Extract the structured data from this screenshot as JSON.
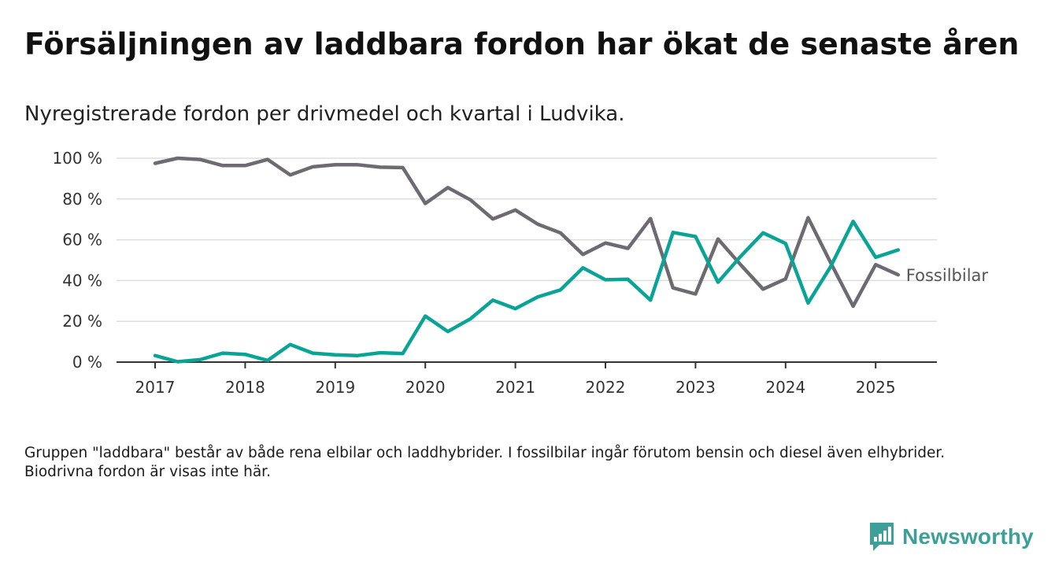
{
  "title": "Försäljningen av laddbara fordon har ökat de senaste åren",
  "subtitle": "Nyregistrerade fordon per drivmedel och kvartal i Ludvika.",
  "footnote": "Gruppen \"laddbara\" består av både rena elbilar och laddhybrider. I fossilbilar ingår förutom bensin och diesel även elhybrider. Biodrivna fordon är visas inte här.",
  "brand": "Newsworthy",
  "colors": {
    "fossil": "#6d6a72",
    "laddbara": "#0aa496",
    "grid": "#dddddd",
    "axis": "#333333",
    "brand": "#3c9f98"
  },
  "chart_data": {
    "type": "line",
    "x_start": "2017-01",
    "x_step": "quarter",
    "xticks": [
      "2017",
      "2018",
      "2019",
      "2020",
      "2021",
      "2022",
      "2023",
      "2024",
      "2025"
    ],
    "ylim": [
      0,
      100
    ],
    "yticks": [
      "0 %",
      "20 %",
      "40 %",
      "60 %",
      "80 %",
      "100 %"
    ],
    "grid": true,
    "series": [
      {
        "name": "Fossilbilar",
        "color": "#6d6a72",
        "values": [
          97.5,
          100,
          99.4,
          96.4,
          96.4,
          99.4,
          91.8,
          95.8,
          96.8,
          96.8,
          95.6,
          95.4,
          77.8,
          85.6,
          79.6,
          70.2,
          74.6,
          67.6,
          63.4,
          52.8,
          58.4,
          55.8,
          70.4,
          36.4,
          33.4,
          60.4,
          47.8,
          35.8,
          40.8,
          70.8,
          48.8,
          27.4,
          47.8,
          42.8
        ]
      },
      {
        "name": "",
        "color": "#0aa496",
        "values": [
          3.2,
          0.2,
          1.2,
          4.4,
          3.8,
          0.8,
          8.6,
          4.4,
          3.6,
          3.2,
          4.6,
          4.2,
          22.6,
          15.0,
          21.2,
          30.4,
          26.2,
          32.0,
          35.4,
          46.2,
          40.4,
          40.6,
          30.4,
          63.6,
          61.6,
          39.2,
          51.8,
          63.4,
          58.2,
          29.0,
          46.8,
          69.0,
          51.4,
          55.0
        ]
      }
    ]
  }
}
